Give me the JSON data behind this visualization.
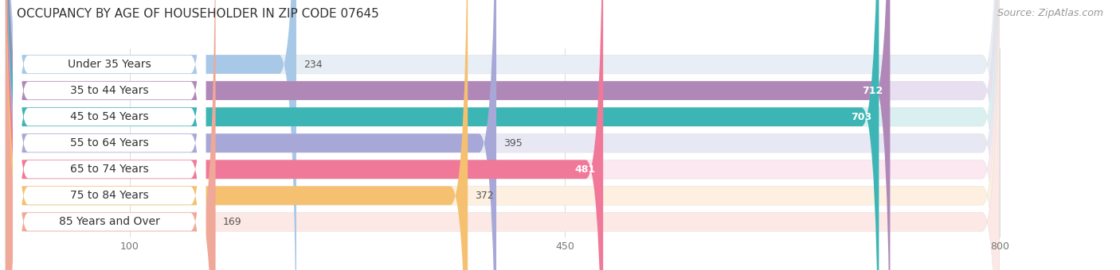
{
  "title": "OCCUPANCY BY AGE OF HOUSEHOLDER IN ZIP CODE 07645",
  "source": "Source: ZipAtlas.com",
  "categories": [
    "Under 35 Years",
    "35 to 44 Years",
    "45 to 54 Years",
    "55 to 64 Years",
    "65 to 74 Years",
    "75 to 84 Years",
    "85 Years and Over"
  ],
  "values": [
    234,
    712,
    703,
    395,
    481,
    372,
    169
  ],
  "bar_colors": [
    "#a8c8e8",
    "#b088b8",
    "#3db5b5",
    "#a8a8d8",
    "#f07898",
    "#f5c070",
    "#f0a898"
  ],
  "bar_bg_colors": [
    "#e8eef5",
    "#e8e0f0",
    "#daf0f0",
    "#e8e8f4",
    "#fce8f0",
    "#fdf0e0",
    "#fce8e4"
  ],
  "xlim_min": 0,
  "xlim_max": 870,
  "data_max": 800,
  "xticks": [
    100,
    450,
    800
  ],
  "title_fontsize": 11,
  "source_fontsize": 9,
  "label_fontsize": 10,
  "value_fontsize": 9,
  "fig_bg_color": "#ffffff",
  "bar_height": 0.72,
  "row_bg_color": "#f0f0f0",
  "label_threshold": 450
}
